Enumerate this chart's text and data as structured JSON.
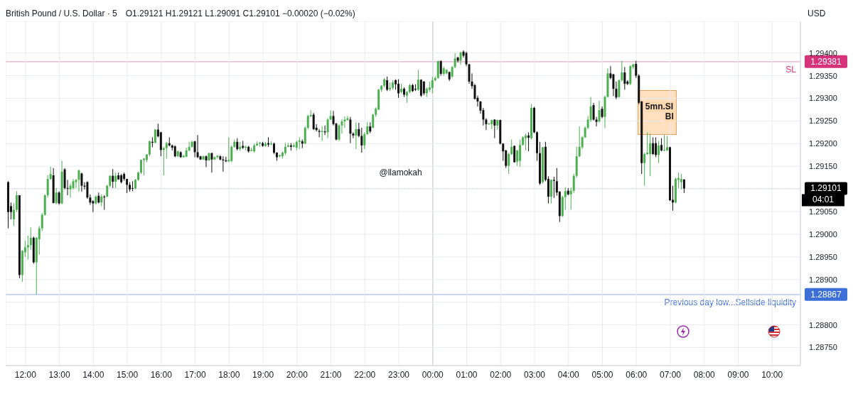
{
  "chart_data": {
    "type": "candlestick",
    "title": "British Pound / U.S. Dollar · 5",
    "subtitle": "O1.29121 H1.29121 L1.29091 C1.29101 −0.00020 (−0.02%)",
    "ylabel": "USD",
    "x": [
      "--03-31T11:30",
      "--03-31T11:35",
      "--03-31T11:40",
      "--03-31T11:45",
      "--03-31T11:50",
      "--03-31T11:55",
      "--03-31T12:00",
      "--03-31T12:05",
      "--03-31T12:10",
      "--03-31T12:15",
      "--03-31T12:20",
      "--03-31T12:25",
      "--03-31T12:30",
      "--03-31T12:35",
      "--03-31T12:40",
      "--03-31T12:45",
      "--03-31T12:50",
      "--03-31T12:55",
      "--03-31T13:00",
      "--03-31T13:05",
      "--03-31T13:10",
      "--03-31T13:15",
      "--03-31T13:20",
      "--03-31T13:25",
      "--03-31T13:30",
      "--03-31T13:35",
      "--03-31T13:40",
      "--03-31T13:45",
      "--03-31T13:50",
      "--03-31T13:55",
      "--03-31T14:00",
      "--03-31T14:05",
      "--03-31T14:10",
      "--03-31T14:15",
      "--03-31T14:20",
      "--03-31T14:25",
      "--03-31T14:30",
      "--03-31T14:35",
      "--03-31T14:40",
      "--03-31T14:45",
      "--03-31T14:50",
      "--03-31T14:55",
      "--03-31T15:00",
      "--03-31T15:05",
      "--03-31T15:10",
      "--03-31T15:15",
      "--03-31T15:20",
      "--03-31T15:25",
      "--03-31T15:30",
      "--03-31T15:35",
      "--03-31T15:40",
      "--03-31T15:45",
      "--03-31T15:50",
      "--03-31T15:55",
      "--03-31T16:00",
      "--03-31T16:05",
      "--03-31T16:10",
      "--03-31T16:15",
      "--03-31T16:20",
      "--03-31T16:25",
      "--03-31T16:30",
      "--03-31T16:35",
      "--03-31T16:40",
      "--03-31T16:45",
      "--03-31T16:50",
      "--03-31T16:55",
      "--03-31T17:00",
      "--03-31T17:05",
      "--03-31T17:10",
      "--03-31T17:15",
      "--03-31T17:20",
      "--03-31T17:25",
      "--03-31T17:30",
      "--03-31T17:35",
      "--03-31T17:40",
      "--03-31T17:45",
      "--03-31T17:50",
      "--03-31T17:55",
      "--03-31T18:00",
      "--03-31T18:05",
      "--03-31T18:10",
      "--03-31T18:15",
      "--03-31T18:20",
      "--03-31T18:25",
      "--03-31T18:30",
      "--03-31T18:35",
      "--03-31T18:40",
      "--03-31T18:45",
      "--03-31T18:50",
      "--03-31T18:55",
      "--03-31T19:00",
      "--03-31T19:05",
      "--03-31T19:10",
      "--03-31T19:15",
      "--03-31T19:20",
      "--03-31T19:25",
      "--03-31T19:30",
      "--03-31T19:35",
      "--03-31T19:40",
      "--03-31T19:45",
      "--03-31T19:50",
      "--03-31T19:55",
      "--03-31T20:00",
      "--03-31T20:05",
      "--03-31T20:10",
      "--03-31T20:15",
      "--03-31T20:20",
      "--03-31T20:25",
      "--03-31T20:30",
      "--03-31T20:35",
      "--03-31T20:40",
      "--03-31T20:45",
      "--03-31T20:50",
      "--03-31T20:55",
      "--03-31T21:00",
      "--03-31T21:05",
      "--03-31T21:10",
      "--03-31T21:15",
      "--03-31T21:20",
      "--03-31T21:25",
      "--03-31T21:30",
      "--03-31T21:35",
      "--03-31T21:40",
      "--03-31T21:45",
      "--03-31T21:50",
      "--03-31T21:55",
      "--03-31T22:00",
      "--03-31T22:05",
      "--03-31T22:10",
      "--03-31T22:15",
      "--03-31T22:20",
      "--03-31T22:25",
      "--03-31T22:30",
      "--03-31T22:35",
      "--03-31T22:40",
      "--03-31T22:45",
      "--03-31T22:50",
      "--03-31T22:55",
      "--03-31T23:00",
      "--03-31T23:05",
      "--03-31T23:10",
      "--03-31T23:15",
      "--03-31T23:20",
      "--03-31T23:25",
      "--03-31T23:30",
      "--03-31T23:35",
      "--03-31T23:40",
      "--03-31T23:45",
      "--03-31T23:50",
      "--03-31T23:55",
      "--04-01T00:00",
      "--04-01T00:05",
      "--04-01T00:10",
      "--04-01T00:15",
      "--04-01T00:20",
      "--04-01T00:25",
      "--04-01T00:30",
      "--04-01T00:35",
      "--04-01T00:40",
      "--04-01T00:45",
      "--04-01T00:50",
      "--04-01T00:55",
      "--04-01T01:00",
      "--04-01T01:05",
      "--04-01T01:10",
      "--04-01T01:15",
      "--04-01T01:20",
      "--04-01T01:25",
      "--04-01T01:30",
      "--04-01T01:35",
      "--04-01T01:40",
      "--04-01T01:45",
      "--04-01T01:50",
      "--04-01T01:55",
      "--04-01T02:00",
      "--04-01T02:05",
      "--04-01T02:10",
      "--04-01T02:15",
      "--04-01T02:20",
      "--04-01T02:25",
      "--04-01T02:30",
      "--04-01T02:35",
      "--04-01T02:40",
      "--04-01T02:45",
      "--04-01T02:50",
      "--04-01T02:55",
      "--04-01T03:00",
      "--04-01T03:05",
      "--04-01T03:10",
      "--04-01T03:15",
      "--04-01T03:20",
      "--04-01T03:25",
      "--04-01T03:30",
      "--04-01T03:35",
      "--04-01T03:40",
      "--04-01T03:45",
      "--04-01T03:50",
      "--04-01T03:55",
      "--04-01T04:00",
      "--04-01T04:05",
      "--04-01T04:10",
      "--04-01T04:15",
      "--04-01T04:20",
      "--04-01T04:25",
      "--04-01T04:30",
      "--04-01T04:35",
      "--04-01T04:40",
      "--04-01T04:45",
      "--04-01T04:50",
      "--04-01T04:55",
      "--04-01T05:00",
      "--04-01T05:05",
      "--04-01T05:10",
      "--04-01T05:15",
      "--04-01T05:20",
      "--04-01T05:25",
      "--04-01T05:30",
      "--04-01T05:35",
      "--04-01T05:40",
      "--04-01T05:45",
      "--04-01T05:50",
      "--04-01T05:55",
      "--04-01T06:00",
      "--04-01T06:05",
      "--04-01T06:10",
      "--04-01T06:15",
      "--04-01T06:20",
      "--04-01T06:25",
      "--04-01T06:30",
      "--04-01T06:35",
      "--04-01T06:40",
      "--04-01T06:45",
      "--04-01T06:50",
      "--04-01T06:55",
      "--04-01T07:00",
      "--04-01T07:05",
      "--04-01T07:10",
      "--04-01T07:15",
      "--04-01T07:20",
      "--04-01T07:25"
    ],
    "ohlc": [
      [
        1.29115,
        1.29117,
        1.29013,
        1.29049
      ],
      [
        1.29062,
        1.2907,
        1.29033,
        1.29049
      ],
      [
        1.29033,
        1.29068,
        1.29018,
        1.29054
      ],
      [
        1.29054,
        1.29095,
        1.29049,
        1.29086
      ],
      [
        1.29086,
        1.29086,
        1.28903,
        1.2891
      ],
      [
        1.2891,
        1.28965,
        1.28895,
        1.28963
      ],
      [
        1.2896,
        1.28986,
        1.2895,
        1.28971
      ],
      [
        1.28971,
        1.28997,
        1.28944,
        1.28976
      ],
      [
        1.28976,
        1.29015,
        1.28965,
        1.28992
      ],
      [
        1.28992,
        1.28995,
        1.28935,
        1.28938
      ],
      [
        1.28938,
        1.28994,
        1.28867,
        1.28992
      ],
      [
        1.28989,
        1.29018,
        1.28955,
        1.29013
      ],
      [
        1.29013,
        1.29047,
        1.29007,
        1.29043
      ],
      [
        1.29043,
        1.29088,
        1.29041,
        1.29086
      ],
      [
        1.29086,
        1.2913,
        1.29081,
        1.29122
      ],
      [
        1.29122,
        1.29149,
        1.2912,
        1.29133
      ],
      [
        1.2913,
        1.29146,
        1.29068,
        1.29069
      ],
      [
        1.29069,
        1.29102,
        1.29066,
        1.29092
      ],
      [
        1.29092,
        1.29095,
        1.29065,
        1.29068
      ],
      [
        1.29068,
        1.29162,
        1.29066,
        1.29138
      ],
      [
        1.29143,
        1.29146,
        1.29099,
        1.29102
      ],
      [
        1.29102,
        1.2912,
        1.29086,
        1.29101
      ],
      [
        1.29099,
        1.29112,
        1.29081,
        1.29107
      ],
      [
        1.29102,
        1.29122,
        1.29099,
        1.29117
      ],
      [
        1.29115,
        1.29122,
        1.29102,
        1.2912
      ],
      [
        1.2912,
        1.29143,
        1.29094,
        1.29141
      ],
      [
        1.29134,
        1.29136,
        1.29094,
        1.29107
      ],
      [
        1.29107,
        1.29115,
        1.29099,
        1.29105
      ],
      [
        1.29115,
        1.29117,
        1.29078,
        1.29081
      ],
      [
        1.29081,
        1.29088,
        1.29065,
        1.2907
      ],
      [
        1.29073,
        1.29075,
        1.29049,
        1.29068
      ],
      [
        1.29068,
        1.29086,
        1.29065,
        1.29083
      ],
      [
        1.29085,
        1.29092,
        1.29068,
        1.2907
      ],
      [
        1.2907,
        1.29088,
        1.29062,
        1.29083
      ],
      [
        1.29083,
        1.29086,
        1.29054,
        1.29082
      ],
      [
        1.29083,
        1.29109,
        1.29082,
        1.29107
      ],
      [
        1.29107,
        1.2913,
        1.29104,
        1.29129
      ],
      [
        1.29129,
        1.29144,
        1.29102,
        1.29116
      ],
      [
        1.29116,
        1.29136,
        1.29102,
        1.29129
      ],
      [
        1.2913,
        1.29136,
        1.2912,
        1.29121
      ],
      [
        1.2913,
        1.29133,
        1.29112,
        1.29115
      ],
      [
        1.29133,
        1.29136,
        1.29118,
        1.29122
      ],
      [
        1.29122,
        1.29122,
        1.29091,
        1.29109
      ],
      [
        1.29109,
        1.29115,
        1.29094,
        1.29099
      ],
      [
        1.29102,
        1.29117,
        1.29095,
        1.29101
      ],
      [
        1.29101,
        1.29122,
        1.29099,
        1.2912
      ],
      [
        1.2912,
        1.29138,
        1.29118,
        1.29136
      ],
      [
        1.29136,
        1.29165,
        1.29133,
        1.29164
      ],
      [
        1.29164,
        1.29168,
        1.2913,
        1.29167
      ],
      [
        1.29164,
        1.29177,
        1.29159,
        1.29176
      ],
      [
        1.29176,
        1.29207,
        1.29172,
        1.29205
      ],
      [
        1.29204,
        1.29214,
        1.29192,
        1.29202
      ],
      [
        1.29202,
        1.29232,
        1.29201,
        1.29231
      ],
      [
        1.29231,
        1.29244,
        1.29214,
        1.29216
      ],
      [
        1.29225,
        1.29226,
        1.29172,
        1.29186
      ],
      [
        1.29186,
        1.29193,
        1.2913,
        1.2919
      ],
      [
        1.2919,
        1.29204,
        1.29167,
        1.29201
      ],
      [
        1.29201,
        1.29214,
        1.29194,
        1.29196
      ],
      [
        1.29196,
        1.29198,
        1.29185,
        1.29191
      ],
      [
        1.29194,
        1.29196,
        1.2917,
        1.29172
      ],
      [
        1.29172,
        1.29185,
        1.2917,
        1.29183
      ],
      [
        1.29181,
        1.29183,
        1.29169,
        1.2917
      ],
      [
        1.2917,
        1.29175,
        1.29169,
        1.29173
      ],
      [
        1.29171,
        1.29191,
        1.2917,
        1.29185
      ],
      [
        1.29185,
        1.29204,
        1.29183,
        1.29193
      ],
      [
        1.29193,
        1.29206,
        1.29191,
        1.29204
      ],
      [
        1.29205,
        1.29206,
        1.2917,
        1.29181
      ],
      [
        1.29181,
        1.29219,
        1.29168,
        1.2917
      ],
      [
        1.29172,
        1.29173,
        1.29164,
        1.29165
      ],
      [
        1.29165,
        1.29174,
        1.29164,
        1.29172
      ],
      [
        1.29172,
        1.29174,
        1.29148,
        1.29163
      ],
      [
        1.29163,
        1.2918,
        1.29162,
        1.29179
      ],
      [
        1.29179,
        1.2918,
        1.29136,
        1.29165
      ],
      [
        1.29165,
        1.29172,
        1.29164,
        1.2917
      ],
      [
        1.2917,
        1.29175,
        1.29167,
        1.29173
      ],
      [
        1.29172,
        1.29174,
        1.29163,
        1.29165
      ],
      [
        1.29165,
        1.29172,
        1.29138,
        1.29163
      ],
      [
        1.29163,
        1.29171,
        1.29159,
        1.29161
      ],
      [
        1.29161,
        1.29214,
        1.29159,
        1.29164
      ],
      [
        1.29162,
        1.29196,
        1.29159,
        1.29193
      ],
      [
        1.29193,
        1.29209,
        1.29191,
        1.29204
      ],
      [
        1.29204,
        1.29212,
        1.29185,
        1.29188
      ],
      [
        1.29188,
        1.29204,
        1.29184,
        1.29193
      ],
      [
        1.29195,
        1.29206,
        1.29188,
        1.29191
      ],
      [
        1.29191,
        1.29196,
        1.29185,
        1.29193
      ],
      [
        1.29193,
        1.29195,
        1.2918,
        1.29183
      ],
      [
        1.29184,
        1.29191,
        1.29183,
        1.29186
      ],
      [
        1.29183,
        1.292,
        1.2918,
        1.29196
      ],
      [
        1.29196,
        1.29205,
        1.29195,
        1.292
      ],
      [
        1.292,
        1.29204,
        1.29193,
        1.29202
      ],
      [
        1.29201,
        1.29204,
        1.29193,
        1.29195
      ],
      [
        1.29195,
        1.29204,
        1.29193,
        1.292
      ],
      [
        1.29201,
        1.29214,
        1.29193,
        1.29198
      ],
      [
        1.29198,
        1.29205,
        1.29197,
        1.292
      ],
      [
        1.292,
        1.29202,
        1.29177,
        1.2918
      ],
      [
        1.2918,
        1.29181,
        1.29162,
        1.2917
      ],
      [
        1.29172,
        1.29176,
        1.2917,
        1.29174
      ],
      [
        1.29172,
        1.29183,
        1.29167,
        1.2918
      ],
      [
        1.29179,
        1.29201,
        1.29175,
        1.29193
      ],
      [
        1.29193,
        1.29201,
        1.29192,
        1.29196
      ],
      [
        1.29196,
        1.29201,
        1.29185,
        1.29193
      ],
      [
        1.29193,
        1.29201,
        1.29192,
        1.29196
      ],
      [
        1.29191,
        1.29206,
        1.29185,
        1.29204
      ],
      [
        1.29204,
        1.29214,
        1.29188,
        1.29207
      ],
      [
        1.29205,
        1.29209,
        1.2919,
        1.292
      ],
      [
        1.292,
        1.29238,
        1.29199,
        1.29235
      ],
      [
        1.29235,
        1.29264,
        1.29232,
        1.29261
      ],
      [
        1.2926,
        1.29274,
        1.29259,
        1.29263
      ],
      [
        1.29264,
        1.29268,
        1.2923,
        1.29232
      ],
      [
        1.29235,
        1.29243,
        1.29227,
        1.2923
      ],
      [
        1.29228,
        1.29232,
        1.29214,
        1.29226
      ],
      [
        1.29226,
        1.29238,
        1.29206,
        1.29228
      ],
      [
        1.29227,
        1.2924,
        1.29219,
        1.29225
      ],
      [
        1.29225,
        1.29256,
        1.29212,
        1.29253
      ],
      [
        1.29253,
        1.29273,
        1.29252,
        1.29261
      ],
      [
        1.29261,
        1.29272,
        1.2924,
        1.29243
      ],
      [
        1.29244,
        1.29246,
        1.29207,
        1.29209
      ],
      [
        1.29209,
        1.29243,
        1.29206,
        1.2924
      ],
      [
        1.2924,
        1.29254,
        1.29222,
        1.29249
      ],
      [
        1.29249,
        1.2926,
        1.29235,
        1.29253
      ],
      [
        1.29252,
        1.29261,
        1.29251,
        1.29256
      ],
      [
        1.29253,
        1.29259,
        1.29201,
        1.29222
      ],
      [
        1.29222,
        1.29225,
        1.29212,
        1.29218
      ],
      [
        1.29218,
        1.29247,
        1.29188,
        1.29232
      ],
      [
        1.29232,
        1.29246,
        1.29214,
        1.29217
      ],
      [
        1.29217,
        1.29235,
        1.2918,
        1.29196
      ],
      [
        1.29196,
        1.29225,
        1.29188,
        1.29221
      ],
      [
        1.29221,
        1.29248,
        1.29219,
        1.29238
      ],
      [
        1.29238,
        1.29247,
        1.29223,
        1.29227
      ],
      [
        1.29235,
        1.29266,
        1.29234,
        1.29264
      ],
      [
        1.29264,
        1.2928,
        1.29259,
        1.29277
      ],
      [
        1.29275,
        1.29321,
        1.29274,
        1.29319
      ],
      [
        1.29319,
        1.29329,
        1.29314,
        1.29328
      ],
      [
        1.29328,
        1.29345,
        1.29324,
        1.29342
      ],
      [
        1.2934,
        1.29348,
        1.29316,
        1.29319
      ],
      [
        1.2932,
        1.29335,
        1.29316,
        1.29323
      ],
      [
        1.29323,
        1.2934,
        1.29319,
        1.29335
      ],
      [
        1.2934,
        1.29342,
        1.29319,
        1.29331
      ],
      [
        1.29332,
        1.29342,
        1.29301,
        1.29311
      ],
      [
        1.29314,
        1.29332,
        1.29311,
        1.29321
      ],
      [
        1.29321,
        1.29324,
        1.29303,
        1.29308
      ],
      [
        1.29306,
        1.29316,
        1.2929,
        1.29314
      ],
      [
        1.29314,
        1.29332,
        1.29311,
        1.29329
      ],
      [
        1.29329,
        1.29332,
        1.29314,
        1.29316
      ],
      [
        1.29321,
        1.29331,
        1.29316,
        1.29319
      ],
      [
        1.29319,
        1.29363,
        1.29316,
        1.29341
      ],
      [
        1.29341,
        1.29342,
        1.29303,
        1.29306
      ],
      [
        1.29337,
        1.29338,
        1.29307,
        1.29311
      ],
      [
        1.29311,
        1.29324,
        1.29303,
        1.29321
      ],
      [
        1.29319,
        1.29337,
        1.29314,
        1.29324
      ],
      [
        1.29323,
        1.29348,
        1.29311,
        1.2934
      ],
      [
        1.2934,
        1.29348,
        1.29337,
        1.29345
      ],
      [
        1.29345,
        1.29383,
        1.29343,
        1.29382
      ],
      [
        1.29382,
        1.29384,
        1.2935,
        1.29354
      ],
      [
        1.29354,
        1.2937,
        1.2935,
        1.29366
      ],
      [
        1.29355,
        1.29364,
        1.29353,
        1.29363
      ],
      [
        1.29358,
        1.29359,
        1.29338,
        1.29342
      ],
      [
        1.29348,
        1.29371,
        1.29345,
        1.29369
      ],
      [
        1.29369,
        1.294,
        1.29366,
        1.29388
      ],
      [
        1.2939,
        1.29392,
        1.29379,
        1.29383
      ],
      [
        1.29383,
        1.29403,
        1.29374,
        1.29401
      ],
      [
        1.29403,
        1.29406,
        1.2939,
        1.29394
      ],
      [
        1.294,
        1.29403,
        1.29371,
        1.29375
      ],
      [
        1.29375,
        1.29376,
        1.29332,
        1.29337
      ],
      [
        1.29337,
        1.29355,
        1.29321,
        1.29327
      ],
      [
        1.29329,
        1.29332,
        1.29297,
        1.29299
      ],
      [
        1.29301,
        1.29306,
        1.29282,
        1.29293
      ],
      [
        1.29293,
        1.29294,
        1.29266,
        1.29273
      ],
      [
        1.29274,
        1.29279,
        1.2924,
        1.29253
      ],
      [
        1.29253,
        1.29256,
        1.2923,
        1.29243
      ],
      [
        1.29243,
        1.29246,
        1.29242,
        1.29244
      ],
      [
        1.29243,
        1.29253,
        1.29232,
        1.29252
      ],
      [
        1.29253,
        1.29254,
        1.29212,
        1.2924
      ],
      [
        1.2924,
        1.29253,
        1.29231,
        1.29252
      ],
      [
        1.29252,
        1.29253,
        1.29198,
        1.292
      ],
      [
        1.292,
        1.29201,
        1.29162,
        1.29183
      ],
      [
        1.29185,
        1.29186,
        1.29146,
        1.29151
      ],
      [
        1.29151,
        1.2918,
        1.29133,
        1.29177
      ],
      [
        1.29177,
        1.29209,
        1.29175,
        1.29193
      ],
      [
        1.29195,
        1.29196,
        1.29158,
        1.29159
      ],
      [
        1.2916,
        1.29186,
        1.29151,
        1.29185
      ],
      [
        1.29162,
        1.29209,
        1.29149,
        1.29197
      ],
      [
        1.29197,
        1.29216,
        1.29196,
        1.29214
      ],
      [
        1.29212,
        1.29222,
        1.29185,
        1.29218
      ],
      [
        1.29218,
        1.29225,
        1.29183,
        1.29213
      ],
      [
        1.29212,
        1.29287,
        1.29209,
        1.29279
      ],
      [
        1.29279,
        1.29281,
        1.29223,
        1.29225
      ],
      [
        1.29225,
        1.29227,
        1.29162,
        1.29179
      ],
      [
        1.29179,
        1.29204,
        1.29109,
        1.29112
      ],
      [
        1.29115,
        1.29193,
        1.29112,
        1.29192
      ],
      [
        1.29193,
        1.29204,
        1.29117,
        1.2912
      ],
      [
        1.29122,
        1.29128,
        1.29068,
        1.29083
      ],
      [
        1.29083,
        1.29121,
        1.29068,
        1.2912
      ],
      [
        1.2912,
        1.29127,
        1.2908,
        1.29118
      ],
      [
        1.29117,
        1.29146,
        1.29085,
        1.29092
      ],
      [
        1.29094,
        1.29095,
        1.29027,
        1.2904
      ],
      [
        1.2904,
        1.29085,
        1.29038,
        1.29082
      ],
      [
        1.29082,
        1.29104,
        1.29054,
        1.29095
      ],
      [
        1.29096,
        1.29102,
        1.29086,
        1.29088
      ],
      [
        1.29088,
        1.29103,
        1.29054,
        1.29096
      ],
      [
        1.29096,
        1.29133,
        1.29091,
        1.29129
      ],
      [
        1.29129,
        1.29193,
        1.29125,
        1.29172
      ],
      [
        1.29172,
        1.29238,
        1.2917,
        1.29193
      ],
      [
        1.29192,
        1.29217,
        1.29188,
        1.29214
      ],
      [
        1.29214,
        1.29238,
        1.29212,
        1.29235
      ],
      [
        1.29235,
        1.29261,
        1.29232,
        1.29253
      ],
      [
        1.29252,
        1.29303,
        1.29248,
        1.29282
      ],
      [
        1.29285,
        1.2929,
        1.29251,
        1.29253
      ],
      [
        1.29253,
        1.29259,
        1.29238,
        1.29248
      ],
      [
        1.29249,
        1.29295,
        1.29246,
        1.29274
      ],
      [
        1.29277,
        1.29282,
        1.29256,
        1.29259
      ],
      [
        1.29259,
        1.29306,
        1.29234,
        1.29303
      ],
      [
        1.29303,
        1.29366,
        1.29302,
        1.29355
      ],
      [
        1.29355,
        1.29371,
        1.29342,
        1.29345
      ],
      [
        1.29353,
        1.29354,
        1.29305,
        1.29321
      ],
      [
        1.29321,
        1.29337,
        1.29298,
        1.29302
      ],
      [
        1.29303,
        1.29342,
        1.29301,
        1.2934
      ],
      [
        1.2934,
        1.29383,
        1.29337,
        1.29357
      ],
      [
        1.29357,
        1.29369,
        1.29319,
        1.29332
      ],
      [
        1.29337,
        1.2934,
        1.29329,
        1.29332
      ],
      [
        1.29332,
        1.29373,
        1.29329,
        1.29371
      ],
      [
        1.29369,
        1.29376,
        1.29364,
        1.29375
      ],
      [
        1.29376,
        1.29383,
        1.29345,
        1.2935
      ],
      [
        1.2935,
        1.29353,
        1.29287,
        1.2929
      ],
      [
        1.29293,
        1.29294,
        1.29133,
        1.29157
      ],
      [
        1.29157,
        1.2918,
        1.29107,
        1.29177
      ],
      [
        1.29177,
        1.29225,
        1.29175,
        1.2918
      ],
      [
        1.29177,
        1.29222,
        1.29128,
        1.29201
      ],
      [
        1.29201,
        1.29214,
        1.29175,
        1.29177
      ],
      [
        1.29201,
        1.29214,
        1.2917,
        1.29175
      ],
      [
        1.29175,
        1.29206,
        1.29157,
        1.29196
      ],
      [
        1.29197,
        1.29212,
        1.29183,
        1.29185
      ],
      [
        1.29185,
        1.29219,
        1.29183,
        1.29186
      ],
      [
        1.29185,
        1.29217,
        1.29184,
        1.29192
      ],
      [
        1.29192,
        1.29193,
        1.29073,
        1.29075
      ],
      [
        1.29076,
        1.29107,
        1.29052,
        1.2907
      ],
      [
        1.2907,
        1.29125,
        1.29068,
        1.29122
      ],
      [
        1.2912,
        1.29136,
        1.29102,
        1.29124
      ],
      [
        1.29115,
        1.29133,
        1.29099,
        1.29122
      ],
      [
        1.29121,
        1.29121,
        1.29091,
        1.29101
      ]
    ],
    "xlim": [
      "--03-31T11:25",
      "--04-01T10:50"
    ],
    "xticks": [
      {
        "value": "--03-31T12:00",
        "label": "12:00"
      },
      {
        "value": "--03-31T13:00",
        "label": "13:00"
      },
      {
        "value": "--03-31T14:00",
        "label": "14:00"
      },
      {
        "value": "--03-31T15:00",
        "label": "15:00"
      },
      {
        "value": "--03-31T16:00",
        "label": "16:00"
      },
      {
        "value": "--03-31T17:00",
        "label": "17:00"
      },
      {
        "value": "--03-31T18:00",
        "label": "18:00"
      },
      {
        "value": "--03-31T19:00",
        "label": "19:00"
      },
      {
        "value": "--03-31T20:00",
        "label": "20:00"
      },
      {
        "value": "--03-31T21:00",
        "label": "21:00"
      },
      {
        "value": "--03-31T22:00",
        "label": "22:00"
      },
      {
        "value": "--03-31T23:00",
        "label": "23:00"
      },
      {
        "value": "--04-01T00:00",
        "label": "00:00"
      },
      {
        "value": "--04-01T01:00",
        "label": "01:00"
      },
      {
        "value": "--04-01T02:00",
        "label": "02:00"
      },
      {
        "value": "--04-01T03:00",
        "label": "03:00"
      },
      {
        "value": "--04-01T04:00",
        "label": "04:00"
      },
      {
        "value": "--04-01T05:00",
        "label": "05:00"
      },
      {
        "value": "--04-01T06:00",
        "label": "06:00"
      },
      {
        "value": "--04-01T07:00",
        "label": "07:00"
      },
      {
        "value": "--04-01T08:00",
        "label": "08:00"
      },
      {
        "value": "--04-01T09:00",
        "label": "09:00"
      },
      {
        "value": "--04-01T10:00",
        "label": "10:00"
      }
    ],
    "ylim": [
      1.2871,
      1.2947
    ],
    "yticks": [
      {
        "value": 1.2875,
        "label": "1.28750"
      },
      {
        "value": 1.288,
        "label": "1.28800"
      },
      {
        "value": 1.2885,
        "label": null
      },
      {
        "value": 1.28867,
        "label": "1.28867"
      },
      {
        "value": 1.289,
        "label": "1.28900"
      },
      {
        "value": 1.2895,
        "label": "1.28950"
      },
      {
        "value": 1.29,
        "label": "1.29000"
      },
      {
        "value": 1.2905,
        "label": "1.29050"
      },
      {
        "value": 1.291,
        "label": null
      },
      {
        "value": 1.29101,
        "label": "1.29101"
      },
      {
        "value": 1.2915,
        "label": "1.29150"
      },
      {
        "value": 1.292,
        "label": "1.29200"
      },
      {
        "value": 1.2925,
        "label": "1.29250"
      },
      {
        "value": 1.293,
        "label": "1.29300"
      },
      {
        "value": 1.2935,
        "label": "1.29350"
      },
      {
        "value": 1.29381,
        "label": "1.29381"
      },
      {
        "value": 1.294,
        "label": "1.29400"
      }
    ],
    "ref_lines": [
      {
        "axis": "y",
        "value": 1.29381,
        "label": "SL",
        "color": "#d6337a",
        "line_style": "solid"
      },
      {
        "axis": "y",
        "value": 1.28867,
        "label": "Previous day low...Sellside liquidity",
        "color": "#3d6fd9",
        "line_style": "solid"
      },
      {
        "axis": "y",
        "value": 1.29101,
        "label": "04:01",
        "color": "#000000",
        "line_style": "dotted"
      },
      {
        "axis": "x",
        "value": "--04-01T00:00",
        "color": "#9e9e9e",
        "line_style": "solid"
      }
    ],
    "annotations": [
      "@llamokah",
      "5mn.SI",
      "BI"
    ],
    "grid": true
  }
}
